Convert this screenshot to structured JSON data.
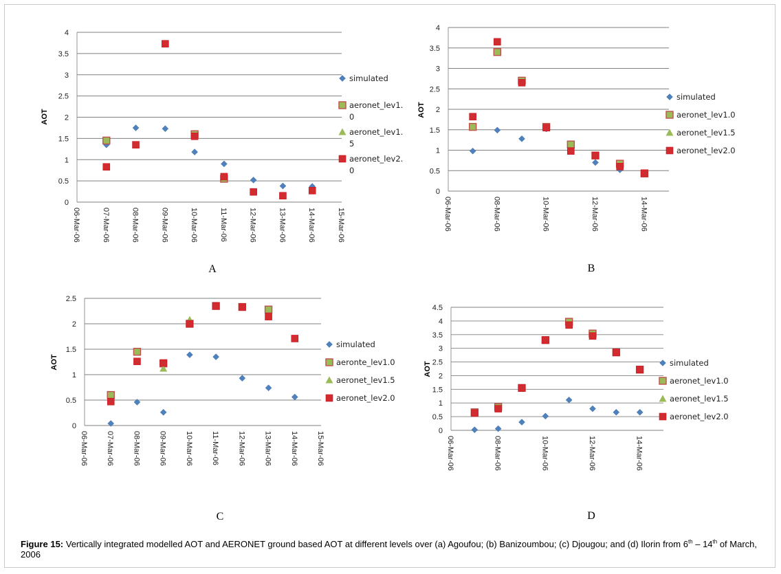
{
  "figure": {
    "caption_label": "Figure 15:",
    "caption_text_1": " Vertically integrated modelled AOT and AERONET ground based AOT at different levels over (a) Agoufou; (b) Banizoumbou; (c) Djougou; and (d) Ilorin from 6",
    "caption_sup_1": "th",
    "caption_text_2": " – 14",
    "caption_sup_2": "th",
    "caption_text_3": " of March, 2006"
  },
  "colors": {
    "simulated": "#4f81bd",
    "lev10": "#9bbb59",
    "lev10_border": "#c0504d",
    "lev15": "#9bbb59",
    "lev20": "#e0242c",
    "lev20_x": "#b83a38",
    "green_dark": "#2f9e47",
    "grid": "#7f7f7f"
  },
  "chart_data": [
    {
      "panel": "A",
      "type": "scatter",
      "ylabel": "AOT",
      "ylim": [
        0,
        4
      ],
      "yticks": [
        "0",
        "0.5",
        "1",
        "1.5",
        "2",
        "2.5",
        "3",
        "3.5",
        "4"
      ],
      "categories": [
        "06-Mar-06",
        "07-Mar-06",
        "08-Mar-06",
        "09-Mar-06",
        "10-Mar-06",
        "11-Mar-06",
        "12-Mar-06",
        "13-Mar-06",
        "14-Mar-06",
        "15-Mar-06"
      ],
      "legend": [
        "simulated",
        "aeronet_lev1.\n0",
        "aeronet_lev1.\n5",
        "aeronet_lev2.\n0"
      ],
      "series": [
        {
          "name": "simulated",
          "values": [
            null,
            1.35,
            1.75,
            1.73,
            1.18,
            0.9,
            0.52,
            0.38,
            0.37,
            null
          ]
        },
        {
          "name": "aeronet_lev1.0",
          "values": [
            null,
            1.45,
            null,
            null,
            1.6,
            0.55,
            null,
            null,
            null,
            null
          ]
        },
        {
          "name": "aeronet_lev1.5",
          "values": [
            null,
            null,
            null,
            null,
            null,
            null,
            null,
            null,
            null,
            null
          ]
        },
        {
          "name": "aeronet_lev2.0",
          "values": [
            null,
            0.83,
            1.35,
            3.73,
            1.55,
            0.6,
            0.24,
            0.15,
            0.27,
            null
          ]
        }
      ]
    },
    {
      "panel": "B",
      "type": "scatter",
      "ylabel": "AOT",
      "ylim": [
        0,
        4
      ],
      "yticks": [
        "0",
        "0.5",
        "1",
        "1.5",
        "2",
        "2.5",
        "3",
        "3.5",
        "4"
      ],
      "categories": [
        "06-Mar-06",
        "08-Mar-06",
        "10-Mar-06",
        "12-Mar-06",
        "14-Mar-06"
      ],
      "legend": [
        "simulated",
        "aeronet_lev1.0",
        "aeronet_lev1.5",
        "aeronet_lev2.0"
      ],
      "series": [
        {
          "name": "simulated",
          "x": [
            1,
            2,
            3,
            4,
            5,
            6,
            7,
            8
          ],
          "values": [
            0.98,
            1.49,
            1.28,
            1.52,
            1.05,
            0.7,
            0.52,
            0.45
          ]
        },
        {
          "name": "aeronet_lev1.0",
          "x": [
            1,
            2,
            3,
            4,
            5,
            6,
            7,
            8
          ],
          "values": [
            1.57,
            3.4,
            2.7,
            1.57,
            1.14,
            0.87,
            0.67,
            0.43
          ]
        },
        {
          "name": "aeronet_lev1.5",
          "x": [],
          "values": []
        },
        {
          "name": "aeronet_lev2.0",
          "x": [
            1,
            2,
            3,
            4,
            5,
            6,
            7,
            8
          ],
          "values": [
            1.82,
            3.65,
            2.65,
            1.55,
            0.98,
            0.87,
            0.6,
            0.44
          ]
        }
      ]
    },
    {
      "panel": "C",
      "type": "scatter",
      "ylabel": "AOT",
      "ylim": [
        0,
        2.5
      ],
      "yticks": [
        "0",
        "0.5",
        "1",
        "1.5",
        "2",
        "2.5"
      ],
      "categories": [
        "06-Mar-06",
        "07-Mar-06",
        "08-Mar-06",
        "09-Mar-06",
        "10-Mar-06",
        "11-Mar-06",
        "12-Mar-06",
        "13-Mar-06",
        "14-Mar-06",
        "15-Mar-06"
      ],
      "legend": [
        "simulated",
        "aeronte_lev1.0",
        "aeronet_lev1.5",
        "aeronet_lev2.0"
      ],
      "series": [
        {
          "name": "simulated",
          "values": [
            null,
            0.04,
            0.46,
            0.26,
            1.39,
            1.35,
            0.93,
            0.74,
            0.56,
            null
          ]
        },
        {
          "name": "aeronte_lev1.0",
          "values": [
            null,
            0.6,
            1.45,
            1.22,
            2.0,
            2.35,
            2.33,
            2.28,
            null,
            null
          ]
        },
        {
          "name": "aeronet_lev1.5",
          "values": [
            null,
            null,
            null,
            1.12,
            2.08,
            null,
            null,
            null,
            null,
            null
          ]
        },
        {
          "name": "aeronet_lev2.0",
          "values": [
            null,
            0.47,
            1.26,
            1.23,
            2.0,
            2.35,
            2.33,
            2.14,
            1.71,
            null
          ]
        }
      ]
    },
    {
      "panel": "D",
      "type": "scatter",
      "ylabel": "AOT",
      "ylim": [
        0,
        4.5
      ],
      "yticks": [
        "0",
        "0.5",
        "1",
        "1.5",
        "2",
        "2.5",
        "3",
        "3.5",
        "4",
        "4.5"
      ],
      "categories": [
        "06-Mar-06",
        "08-Mar-06",
        "10-Mar-06",
        "12-Mar-06",
        "14-Mar-06"
      ],
      "legend": [
        "simulated",
        "aeronet_lev1.0",
        "aeronet_lev1.5",
        "aeronet_lev2.0"
      ],
      "series": [
        {
          "name": "simulated",
          "x": [
            1,
            2,
            3,
            4,
            5,
            6,
            7,
            8
          ],
          "values": [
            0.02,
            0.06,
            0.3,
            0.52,
            1.11,
            0.79,
            0.66,
            0.66
          ]
        },
        {
          "name": "aeronet_lev1.0",
          "x": [
            1,
            2,
            3,
            4,
            5,
            6,
            7,
            8
          ],
          "values": [
            0.66,
            0.85,
            1.55,
            3.3,
            3.97,
            3.54,
            2.85,
            2.22
          ]
        },
        {
          "name": "aeronet_lev1.5",
          "x": [],
          "values": []
        },
        {
          "name": "aeronet_lev2.0",
          "x": [
            1,
            2,
            3,
            4,
            5,
            6,
            7,
            8
          ],
          "values": [
            0.63,
            0.79,
            1.55,
            3.3,
            3.85,
            3.45,
            2.85,
            2.22
          ]
        }
      ]
    }
  ]
}
